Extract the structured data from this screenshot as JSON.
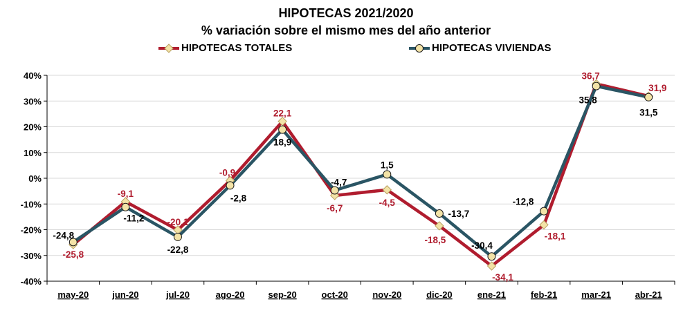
{
  "title": "HIPOTECAS 2021/2020",
  "subtitle": "% variación sobre el mismo mes del año anterior",
  "colors": {
    "totales": "#b01c2e",
    "viviendas": "#2a5564",
    "marker": "#f3e3a7",
    "grid": "#d9d9d9"
  },
  "chart_data": {
    "type": "line",
    "title": "HIPOTECAS 2021/2020",
    "subtitle": "% variación sobre el mismo mes del año anterior",
    "categories": [
      "may-20",
      "jun-20",
      "jul-20",
      "ago-20",
      "sep-20",
      "oct-20",
      "nov-20",
      "dic-20",
      "ene-21",
      "feb-21",
      "mar-21",
      "abr-21"
    ],
    "yticks": [
      "40%",
      "30%",
      "20%",
      "10%",
      "0%",
      "-10%",
      "-20%",
      "-30%",
      "-40%"
    ],
    "ylim": [
      -40,
      40
    ],
    "grid": true,
    "legend_position": "top",
    "series": [
      {
        "name": "HIPOTECAS TOTALES",
        "marker": "diamond",
        "values": [
          -25.8,
          -9.1,
          -20.1,
          -0.9,
          22.1,
          -6.7,
          -4.5,
          -18.5,
          -34.1,
          -18.1,
          36.7,
          31.9
        ],
        "labels": [
          "-25,8",
          "-9,1",
          "-20,1",
          "-0,9",
          "22,1",
          "-6,7",
          "-4,5",
          "-18,5",
          "-34,1",
          "-18,1",
          "36,7",
          "31,9"
        ]
      },
      {
        "name": "HIPOTECAS VIVIENDAS",
        "marker": "circle",
        "values": [
          -24.8,
          -11.2,
          -22.8,
          -2.8,
          18.9,
          -4.7,
          1.5,
          -13.7,
          -30.4,
          -12.8,
          35.8,
          31.5
        ],
        "labels": [
          "-24,8",
          "-11,2",
          "-22,8",
          "-2,8",
          "18,9",
          "-4,7",
          "1,5",
          "-13,7",
          "-30,4",
          "-12,8",
          "35,8",
          "31,5"
        ]
      }
    ]
  }
}
